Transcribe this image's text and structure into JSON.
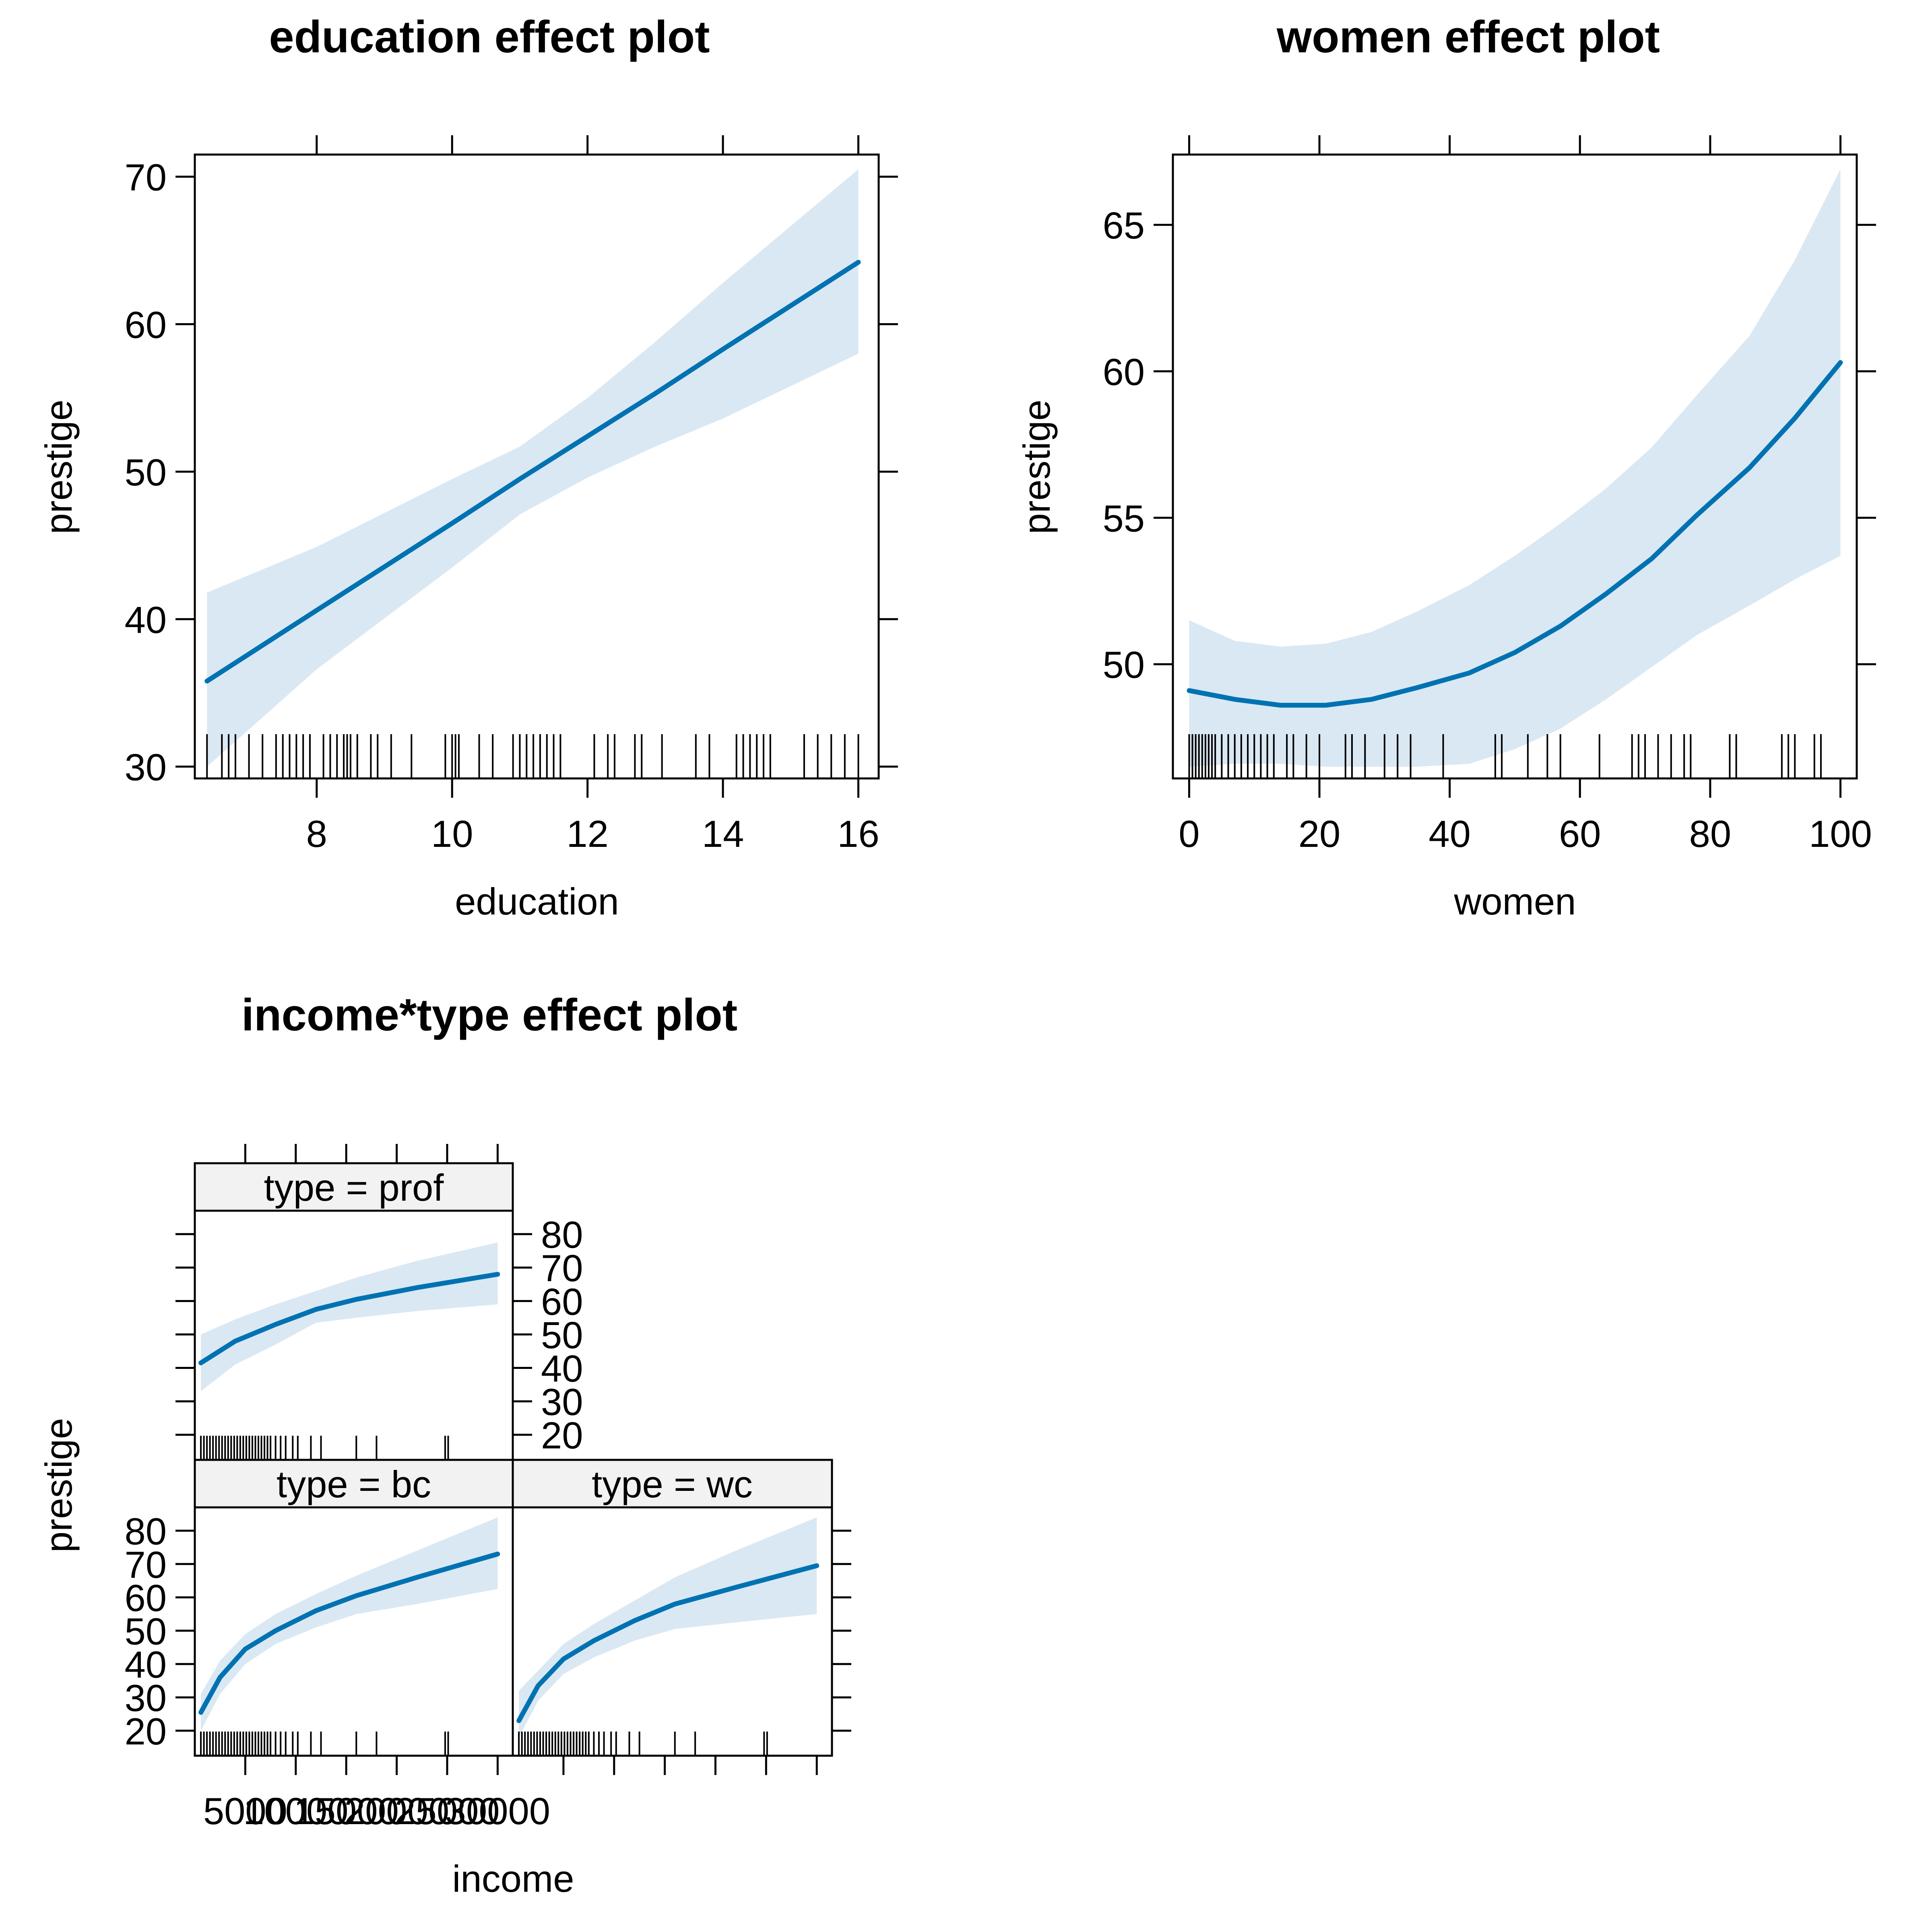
{
  "colors": {
    "line": "#0072B2",
    "band": "#DAE8F3",
    "strip": "#F2F2F2",
    "axis": "#000000"
  },
  "chart_data": [
    {
      "type": "line",
      "title": "education effect plot",
      "xlabel": "education",
      "ylabel": "prestige",
      "xlim": [
        6.2,
        16.3
      ],
      "ylim": [
        29.2,
        71.5
      ],
      "xticks": [
        8,
        10,
        12,
        14,
        16
      ],
      "yticks": [
        30,
        40,
        50,
        60,
        70
      ],
      "x": [
        6.38,
        8,
        10,
        11,
        12,
        13,
        14,
        16
      ],
      "fit": [
        35.8,
        40.6,
        46.5,
        49.5,
        52.4,
        55.3,
        58.3,
        64.2
      ],
      "lower": [
        30.0,
        36.6,
        43.5,
        47.1,
        49.6,
        51.7,
        53.6,
        58.0
      ],
      "upper": [
        41.8,
        44.9,
        49.5,
        51.7,
        55.0,
        58.8,
        62.8,
        70.5
      ],
      "rug": [
        6.38,
        6.6,
        6.7,
        6.8,
        7.0,
        7.2,
        7.4,
        7.5,
        7.6,
        7.7,
        7.8,
        7.9,
        8.1,
        8.2,
        8.3,
        8.4,
        8.45,
        8.5,
        8.6,
        8.8,
        8.9,
        9.1,
        9.4,
        9.9,
        10.0,
        10.05,
        10.1,
        10.4,
        10.6,
        10.9,
        11.0,
        11.1,
        11.2,
        11.3,
        11.4,
        11.5,
        11.6,
        12.1,
        12.3,
        12.4,
        12.7,
        12.8,
        13.1,
        13.6,
        13.8,
        14.2,
        14.3,
        14.4,
        14.5,
        14.6,
        14.7,
        15.2,
        15.4,
        15.6,
        15.8,
        16.0
      ]
    },
    {
      "type": "line",
      "title": "women effect plot",
      "xlabel": "women",
      "ylabel": "prestige",
      "xlim": [
        -2.5,
        102.5
      ],
      "ylim": [
        46.1,
        67.4
      ],
      "xticks": [
        0,
        20,
        40,
        60,
        80,
        100
      ],
      "yticks": [
        50,
        55,
        60,
        65
      ],
      "x": [
        0,
        7,
        14,
        21,
        28,
        35,
        43,
        50,
        57,
        64,
        71,
        78,
        86,
        93,
        100
      ],
      "fit": [
        49.1,
        48.8,
        48.6,
        48.6,
        48.8,
        49.2,
        49.7,
        50.4,
        51.3,
        52.4,
        53.6,
        55.1,
        56.7,
        58.4,
        60.3
      ],
      "lower": [
        46.5,
        46.6,
        46.6,
        46.5,
        46.5,
        46.5,
        46.6,
        47.1,
        47.8,
        48.8,
        49.9,
        51.0,
        52.0,
        52.9,
        53.7
      ],
      "upper": [
        51.5,
        50.8,
        50.6,
        50.7,
        51.1,
        51.8,
        52.7,
        53.7,
        54.8,
        56.0,
        57.4,
        59.2,
        61.2,
        63.8,
        66.9
      ],
      "rug": [
        0,
        0.5,
        1,
        1.5,
        2,
        2.5,
        3,
        3.5,
        4,
        5,
        6,
        7,
        8,
        9,
        10,
        11,
        12,
        13,
        15,
        16,
        18,
        20,
        24,
        25,
        27,
        30,
        32,
        34,
        39,
        47,
        48,
        52,
        55,
        57,
        63,
        68,
        69,
        70,
        72,
        74,
        76,
        77,
        83,
        84,
        91,
        92,
        93,
        96,
        97
      ]
    },
    {
      "type": "line",
      "title": "income*type effect plot",
      "xlabel": "income",
      "ylabel": "prestige",
      "xlim": [
        0,
        31500
      ],
      "ylim": [
        12.5,
        87
      ],
      "xticks": [
        5000,
        10000,
        15000,
        20000,
        25000,
        30000
      ],
      "xtick_labels": [
        "5000",
        "10000",
        "15000",
        "20000",
        "25000",
        "30000"
      ],
      "yticks": [
        20,
        30,
        40,
        50,
        60,
        70,
        80
      ],
      "panels": [
        {
          "strip": "type = prof",
          "x": [
            600,
            4000,
            8000,
            12000,
            16000,
            22000,
            30000
          ],
          "fit": [
            41.5,
            48,
            53,
            57.5,
            60.5,
            64,
            68
          ],
          "lower": [
            33,
            41,
            47,
            53.5,
            55,
            57,
            59
          ],
          "upper": [
            50,
            54.5,
            59,
            63,
            67,
            72,
            77.5
          ],
          "rug": [
            600,
            900,
            1200,
            1500,
            1800,
            2100,
            2400,
            2700,
            3000,
            3300,
            3600,
            3900,
            4200,
            4500,
            4800,
            5100,
            5400,
            5700,
            6000,
            6300,
            6600,
            6900,
            7200,
            7500,
            8000,
            8500,
            9000,
            9700,
            10200,
            11500,
            12500,
            16000,
            18000,
            24800,
            25100
          ]
        },
        {
          "strip": "type = bc",
          "x": [
            600,
            2500,
            5000,
            8000,
            12000,
            16000,
            22000,
            30000
          ],
          "fit": [
            25.5,
            36,
            44.5,
            50,
            56,
            60.5,
            66,
            73
          ],
          "lower": [
            20,
            31,
            40,
            46,
            51,
            55,
            58,
            62.5
          ],
          "upper": [
            31,
            41,
            49,
            55,
            61,
            66.5,
            74,
            84
          ],
          "rug": [
            600,
            900,
            1200,
            1500,
            1800,
            2100,
            2400,
            2700,
            3000,
            3300,
            3600,
            3900,
            4200,
            4500,
            4800,
            5100,
            5400,
            5700,
            6000,
            6300,
            6600,
            6900,
            7200,
            7500,
            8000,
            8500,
            9000,
            9700,
            10200,
            11500,
            12500,
            16000,
            18000,
            24800,
            25100
          ]
        },
        {
          "strip": "type = wc",
          "x": [
            600,
            2500,
            5000,
            8000,
            12000,
            16000,
            22000,
            30000
          ],
          "fit": [
            23,
            33.5,
            41.5,
            47,
            53,
            58,
            63,
            69.5
          ],
          "lower": [
            18,
            29,
            37,
            42,
            47,
            50.5,
            52.5,
            55
          ],
          "upper": [
            32,
            38,
            46,
            52,
            59,
            66,
            74,
            84
          ],
          "rug": [
            600,
            900,
            1200,
            1500,
            1800,
            2100,
            2400,
            2700,
            3000,
            3300,
            3600,
            3900,
            4200,
            4500,
            4800,
            5100,
            5400,
            5700,
            6000,
            6300,
            6600,
            6900,
            7200,
            7500,
            8000,
            8500,
            9000,
            9700,
            10200,
            11500,
            12500,
            16000,
            18000,
            24800,
            25100
          ]
        }
      ]
    }
  ]
}
